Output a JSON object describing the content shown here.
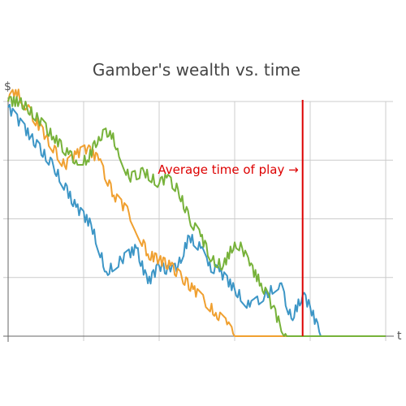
{
  "chart_data": {
    "type": "line",
    "title": "Gamber's wealth vs. time",
    "xlabel": "t",
    "ylabel": "$",
    "xlim": [
      0,
      500
    ],
    "ylim": [
      0,
      40
    ],
    "grid": true,
    "legend": "none",
    "annotation": {
      "text": "Average time of play →",
      "color": "#dd0000"
    },
    "average_time_of_play": 390,
    "colors": {
      "blue": "#3d96c6",
      "orange": "#f0a030",
      "green": "#77b23a",
      "annotation_line": "#dd0000",
      "grid": "#cccccc",
      "axis": "#666666"
    },
    "series": [
      {
        "color": "#3d96c6",
        "absorbed_at": 414,
        "points": [
          [
            0,
            39
          ],
          [
            30,
            34
          ],
          [
            60,
            29
          ],
          [
            90,
            22
          ],
          [
            110,
            19
          ],
          [
            130,
            11
          ],
          [
            150,
            13
          ],
          [
            170,
            15
          ],
          [
            185,
            9
          ],
          [
            200,
            12
          ],
          [
            215,
            11
          ],
          [
            225,
            12
          ],
          [
            240,
            17
          ],
          [
            255,
            15
          ],
          [
            265,
            12
          ],
          [
            280,
            11
          ],
          [
            300,
            8
          ],
          [
            320,
            5
          ],
          [
            340,
            7
          ],
          [
            360,
            9
          ],
          [
            375,
            3
          ],
          [
            390,
            7
          ],
          [
            400,
            5
          ],
          [
            414,
            0
          ],
          [
            500,
            0
          ]
        ]
      },
      {
        "color": "#f0a030",
        "absorbed_at": 300,
        "points": [
          [
            0,
            40
          ],
          [
            10,
            42
          ],
          [
            25,
            39
          ],
          [
            50,
            34
          ],
          [
            75,
            29
          ],
          [
            90,
            31
          ],
          [
            105,
            32
          ],
          [
            120,
            30
          ],
          [
            140,
            24
          ],
          [
            160,
            21
          ],
          [
            185,
            14
          ],
          [
            200,
            13
          ],
          [
            215,
            12
          ],
          [
            230,
            10
          ],
          [
            245,
            8
          ],
          [
            260,
            6
          ],
          [
            275,
            4
          ],
          [
            290,
            2
          ],
          [
            300,
            0
          ],
          [
            500,
            0
          ]
        ]
      },
      {
        "color": "#77b23a",
        "absorbed_at": 369,
        "points": [
          [
            0,
            40
          ],
          [
            15,
            40
          ],
          [
            25,
            39
          ],
          [
            40,
            37
          ],
          [
            60,
            34
          ],
          [
            80,
            31
          ],
          [
            90,
            30
          ],
          [
            105,
            30
          ],
          [
            120,
            34
          ],
          [
            135,
            35
          ],
          [
            145,
            32
          ],
          [
            160,
            27
          ],
          [
            180,
            28
          ],
          [
            200,
            26
          ],
          [
            210,
            27
          ],
          [
            225,
            25
          ],
          [
            240,
            20
          ],
          [
            255,
            17
          ],
          [
            270,
            13
          ],
          [
            285,
            12
          ],
          [
            300,
            16
          ],
          [
            310,
            15
          ],
          [
            320,
            12
          ],
          [
            335,
            9
          ],
          [
            350,
            5
          ],
          [
            360,
            2
          ],
          [
            369,
            0
          ],
          [
            500,
            0
          ]
        ]
      }
    ]
  }
}
